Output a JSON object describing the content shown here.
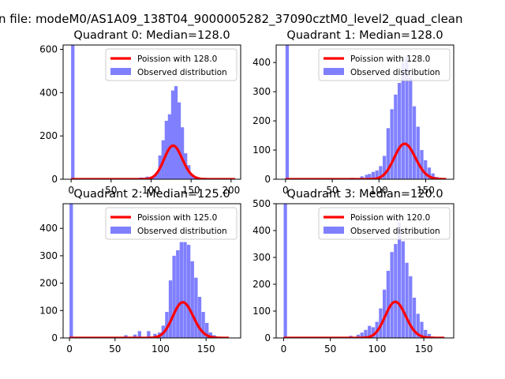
{
  "suptitle": "n file: modeM0/AS1A09_138T04_9000005282_37090cztM0_level2_quad_clean",
  "colors": {
    "poisson": "#ff0000",
    "observed": "#8080ff",
    "axes": "#000000"
  },
  "chart_data": [
    {
      "type": "bar",
      "title": "Quadrant 0: Median=128.0",
      "xlim": [
        -10,
        212
      ],
      "ylim": [
        0,
        620
      ],
      "xticks": [
        0,
        50,
        100,
        150,
        200
      ],
      "yticks": [
        0,
        200,
        400,
        600
      ],
      "legend_position": "top-right",
      "poisson": {
        "label": "Poission with 128.0",
        "lambda": 128.0,
        "x_range": [
          0,
          205
        ],
        "scale": 4400
      },
      "observed": {
        "label": "Observed distribution",
        "bin_width": 4.2,
        "bins": [
          [
            0,
            620
          ],
          [
            60,
            3
          ],
          [
            65,
            4
          ],
          [
            70,
            4
          ],
          [
            75,
            5
          ],
          [
            80,
            4
          ],
          [
            85,
            8
          ],
          [
            89,
            7
          ],
          [
            93,
            12
          ],
          [
            97,
            9
          ],
          [
            101,
            14
          ],
          [
            105,
            30
          ],
          [
            109,
            110
          ],
          [
            113,
            180
          ],
          [
            117,
            270
          ],
          [
            121,
            300
          ],
          [
            125,
            410
          ],
          [
            129,
            430
          ],
          [
            133,
            355
          ],
          [
            137,
            240
          ],
          [
            141,
            120
          ],
          [
            145,
            65
          ],
          [
            149,
            20
          ],
          [
            153,
            10
          ],
          [
            157,
            3
          ],
          [
            161,
            2
          ]
        ]
      }
    },
    {
      "type": "bar",
      "title": "Quadrant 1: Median=128.0",
      "xlim": [
        -10,
        180
      ],
      "ylim": [
        0,
        460
      ],
      "xticks": [
        0,
        50,
        100,
        150
      ],
      "yticks": [
        0,
        100,
        200,
        300,
        400
      ],
      "legend_position": "top-right",
      "poisson": {
        "label": "Poission with 128.0",
        "lambda": 128.0,
        "x_range": [
          0,
          172
        ],
        "scale": 3450
      },
      "observed": {
        "label": "Observed distribution",
        "bin_width": 3.6,
        "bins": [
          [
            0,
            460
          ],
          [
            20,
            3
          ],
          [
            35,
            3
          ],
          [
            50,
            4
          ],
          [
            60,
            3
          ],
          [
            70,
            5
          ],
          [
            80,
            10
          ],
          [
            85,
            15
          ],
          [
            88,
            18
          ],
          [
            92,
            25
          ],
          [
            96,
            30
          ],
          [
            100,
            45
          ],
          [
            104,
            80
          ],
          [
            108,
            175
          ],
          [
            112,
            240
          ],
          [
            116,
            290
          ],
          [
            120,
            330
          ],
          [
            124,
            400
          ],
          [
            128,
            420
          ],
          [
            132,
            350
          ],
          [
            136,
            250
          ],
          [
            140,
            180
          ],
          [
            144,
            100
          ],
          [
            148,
            65
          ],
          [
            152,
            40
          ],
          [
            156,
            20
          ],
          [
            160,
            8
          ]
        ]
      }
    },
    {
      "type": "bar",
      "title": "Quadrant 2: Median=125.0",
      "xlim": [
        -7,
        188
      ],
      "ylim": [
        0,
        490
      ],
      "xticks": [
        0,
        50,
        100,
        150
      ],
      "yticks": [
        0,
        100,
        200,
        300,
        400
      ],
      "legend_position": "top-right",
      "poisson": {
        "label": "Poission with 125.0",
        "lambda": 125.0,
        "x_range": [
          0,
          175
        ],
        "scale": 3650
      },
      "observed": {
        "label": "Observed distribution",
        "bin_width": 3.8,
        "bins": [
          [
            0,
            490
          ],
          [
            40,
            3
          ],
          [
            60,
            10
          ],
          [
            70,
            12
          ],
          [
            75,
            25
          ],
          [
            85,
            25
          ],
          [
            92,
            15
          ],
          [
            97,
            20
          ],
          [
            101,
            45
          ],
          [
            105,
            95
          ],
          [
            109,
            210
          ],
          [
            113,
            300
          ],
          [
            117,
            320
          ],
          [
            121,
            350
          ],
          [
            125,
            350
          ],
          [
            129,
            340
          ],
          [
            133,
            280
          ],
          [
            137,
            220
          ],
          [
            141,
            150
          ],
          [
            145,
            95
          ],
          [
            149,
            55
          ],
          [
            153,
            20
          ],
          [
            157,
            10
          ],
          [
            161,
            3
          ]
        ]
      }
    },
    {
      "type": "bar",
      "title": "Quadrant 3: Median=120.0",
      "xlim": [
        -8,
        182
      ],
      "ylim": [
        0,
        500
      ],
      "xticks": [
        0,
        50,
        100,
        150
      ],
      "yticks": [
        0,
        100,
        200,
        300,
        400,
        500
      ],
      "legend_position": "top-right",
      "poisson": {
        "label": "Poission with 120.0",
        "lambda": 120.0,
        "x_range": [
          0,
          172
        ],
        "scale": 3700
      },
      "observed": {
        "label": "Observed distribution",
        "bin_width": 3.6,
        "bins": [
          [
            0,
            500
          ],
          [
            30,
            3
          ],
          [
            50,
            4
          ],
          [
            60,
            3
          ],
          [
            70,
            8
          ],
          [
            78,
            12
          ],
          [
            82,
            20
          ],
          [
            86,
            30
          ],
          [
            90,
            45
          ],
          [
            94,
            40
          ],
          [
            98,
            60
          ],
          [
            102,
            110
          ],
          [
            106,
            180
          ],
          [
            110,
            250
          ],
          [
            114,
            320
          ],
          [
            118,
            350
          ],
          [
            122,
            430
          ],
          [
            126,
            360
          ],
          [
            130,
            280
          ],
          [
            134,
            230
          ],
          [
            138,
            150
          ],
          [
            142,
            90
          ],
          [
            146,
            60
          ],
          [
            150,
            30
          ],
          [
            154,
            15
          ],
          [
            158,
            5
          ]
        ]
      }
    }
  ]
}
